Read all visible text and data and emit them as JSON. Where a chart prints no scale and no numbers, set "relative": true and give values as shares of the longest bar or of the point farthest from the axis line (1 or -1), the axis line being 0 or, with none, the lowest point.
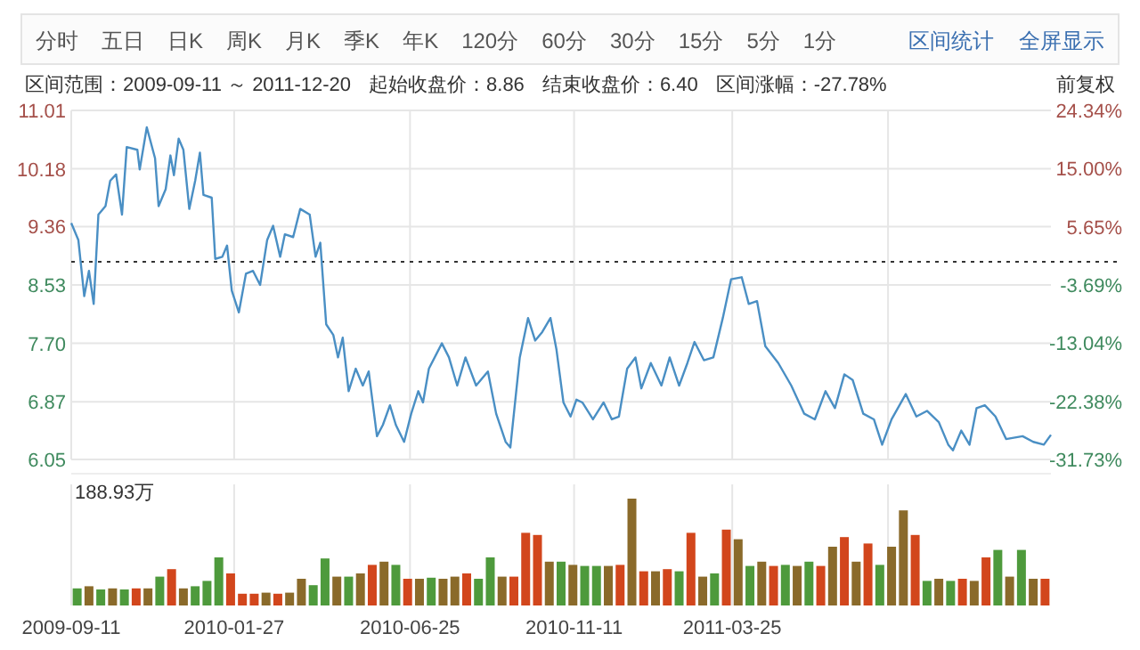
{
  "chart_data": [
    {
      "type": "line",
      "annotations": [
        "分时",
        "五日",
        "日K",
        "周K",
        "月K",
        "季K",
        "年K",
        "120分",
        "60分",
        "30分",
        "15分",
        "5分",
        "1分",
        "区间统计",
        "全屏显示",
        "区间范围：2009-09-11 ～ 2011-12-20",
        "起始收盘价：8.86",
        "结束收盘价：6.40",
        "区间涨幅：-27.78%",
        "前复权"
      ],
      "xlim": [
        "2009-09-11",
        "2011-12-20"
      ],
      "xticks": [
        "2009-09-11",
        "2010-01-27",
        "2010-06-25",
        "2010-11-11",
        "2011-03-25",
        {
          "value": "2011-08-04",
          "label": null
        }
      ],
      "ylim": [
        6.05,
        11.01
      ],
      "yticks": [
        6.05,
        6.87,
        {
          "value": 7.7,
          "label": "7.70"
        },
        8.53,
        9.36,
        10.18,
        11.01
      ],
      "y2lim": [
        -31.73,
        24.34
      ],
      "y2ticks": [
        {
          "value": -31.73,
          "label": "-31.73%"
        },
        {
          "value": -22.38,
          "label": "-22.38%"
        },
        {
          "value": -13.04,
          "label": "-13.04%"
        },
        {
          "value": -3.69,
          "label": "-3.69%"
        },
        {
          "value": 5.65,
          "label": "5.65%"
        },
        {
          "value": 15.0,
          "label": "15.00%"
        },
        {
          "value": 24.34,
          "label": "24.34%"
        }
      ],
      "grid": true,
      "tick_labels": "y",
      "ref_lines": [
        {
          "axis": "y",
          "value": 8.86,
          "line_style": "dotted",
          "color": "#333333"
        }
      ],
      "series": [
        {
          "color": "#4a8fc4",
          "x": [
            "2009-09-11",
            "2009-09-17",
            "2009-09-22",
            "2009-09-26",
            "2009-09-30",
            "2009-10-04",
            "2009-10-10",
            "2009-10-14",
            "2009-10-19",
            "2009-10-24",
            "2009-10-28",
            "2009-11-06",
            "2009-11-08",
            "2009-11-14",
            "2009-11-21",
            "2009-11-24",
            "2009-11-30",
            "2009-12-04",
            "2009-12-07",
            "2009-12-11",
            "2009-12-15",
            "2009-12-20",
            "2009-12-25",
            "2009-12-29",
            "2010-01-01",
            "2010-01-08",
            "2010-01-11",
            "2010-01-17",
            "2010-01-21",
            "2010-01-25",
            "2010-01-31",
            "2010-02-06",
            "2010-02-12",
            "2010-02-18",
            "2010-02-24",
            "2010-03-01",
            "2010-03-07",
            "2010-03-11",
            "2010-03-18",
            "2010-03-24",
            "2010-04-01",
            "2010-04-06",
            "2010-04-10",
            "2010-04-15",
            "2010-04-21",
            "2010-04-25",
            "2010-04-29",
            "2010-05-04",
            "2010-05-10",
            "2010-05-16",
            "2010-05-21",
            "2010-05-28",
            "2010-06-02",
            "2010-06-08",
            "2010-06-13",
            "2010-06-20",
            "2010-06-26",
            "2010-07-02",
            "2010-07-06",
            "2010-07-11",
            "2010-07-22",
            "2010-07-28",
            "2010-08-04",
            "2010-08-11",
            "2010-08-20",
            "2010-08-30",
            "2010-09-06",
            "2010-09-14",
            "2010-09-18",
            "2010-09-26",
            "2010-10-03",
            "2010-10-09",
            "2010-10-15",
            "2010-10-22",
            "2010-10-27",
            "2010-11-02",
            "2010-11-08",
            "2010-11-13",
            "2010-11-18",
            "2010-11-27",
            "2010-12-06",
            "2010-12-13",
            "2010-12-19",
            "2010-12-26",
            "2011-01-02",
            "2011-01-07",
            "2011-01-15",
            "2011-01-24",
            "2011-01-31",
            "2011-02-08",
            "2011-02-15",
            "2011-02-21",
            "2011-03-01",
            "2011-03-09",
            "2011-03-17",
            "2011-03-24",
            "2011-04-02",
            "2011-04-08",
            "2011-04-15",
            "2011-04-22",
            "2011-05-03",
            "2011-05-14",
            "2011-05-25",
            "2011-06-03",
            "2011-06-12",
            "2011-06-20",
            "2011-06-28",
            "2011-07-05",
            "2011-07-14",
            "2011-07-23",
            "2011-07-30",
            "2011-08-07",
            "2011-08-19",
            "2011-08-28",
            "2011-09-06",
            "2011-09-16",
            "2011-09-24",
            "2011-09-28",
            "2011-10-05",
            "2011-10-12",
            "2011-10-18",
            "2011-10-25",
            "2011-11-03",
            "2011-11-12",
            "2011-11-26",
            "2011-12-05",
            "2011-12-14",
            "2011-12-20"
          ],
          "values": [
            9.41,
            9.17,
            8.37,
            8.73,
            8.26,
            9.53,
            9.65,
            10.01,
            10.1,
            9.53,
            10.49,
            10.45,
            10.17,
            10.77,
            10.33,
            9.65,
            9.89,
            10.37,
            10.09,
            10.61,
            10.45,
            9.61,
            10.01,
            10.41,
            9.81,
            9.77,
            8.9,
            8.93,
            9.09,
            8.45,
            8.14,
            8.69,
            8.73,
            8.53,
            9.17,
            9.37,
            8.93,
            9.25,
            9.21,
            9.61,
            9.53,
            8.93,
            9.13,
            7.97,
            7.82,
            7.5,
            7.78,
            7.02,
            7.34,
            7.1,
            7.3,
            6.38,
            6.54,
            6.82,
            6.54,
            6.3,
            6.7,
            7.02,
            6.86,
            7.34,
            7.7,
            7.5,
            7.1,
            7.5,
            7.1,
            7.3,
            6.7,
            6.3,
            6.22,
            7.5,
            8.06,
            7.74,
            7.86,
            8.06,
            7.62,
            6.86,
            6.66,
            6.9,
            6.86,
            6.62,
            6.86,
            6.62,
            6.66,
            7.34,
            7.5,
            7.06,
            7.42,
            7.1,
            7.5,
            7.1,
            7.42,
            7.72,
            7.46,
            7.5,
            8.06,
            8.61,
            8.64,
            8.26,
            8.3,
            7.66,
            7.42,
            7.1,
            6.7,
            6.62,
            7.02,
            6.78,
            7.26,
            7.18,
            6.7,
            6.62,
            6.26,
            6.62,
            6.98,
            6.66,
            6.74,
            6.58,
            6.26,
            6.18,
            6.46,
            6.26,
            6.78,
            6.82,
            6.66,
            6.34,
            6.38,
            6.3,
            6.26,
            6.4
          ]
        }
      ]
    },
    {
      "type": "bar",
      "relative": true,
      "annotations": [
        "188.93万"
      ],
      "grid": "x",
      "tick_labels": "x",
      "xlim": [
        "2009-09-11",
        "2011-12-20"
      ],
      "xticks": [
        "2009-09-11",
        "2010-01-27",
        "2010-06-25",
        "2010-11-11",
        "2011-03-25",
        {
          "value": "2011-08-04",
          "label": null
        }
      ],
      "x": [
        "2009-09-16",
        "2009-09-26",
        "2009-10-06",
        "2009-10-16",
        "2009-10-26",
        "2009-11-05",
        "2009-11-15",
        "2009-11-25",
        "2009-12-05",
        "2009-12-15",
        "2009-12-25",
        "2010-01-04",
        "2010-01-14",
        "2010-01-24",
        "2010-02-03",
        "2010-02-13",
        "2010-02-23",
        "2010-03-05",
        "2010-03-15",
        "2010-03-25",
        "2010-04-04",
        "2010-04-14",
        "2010-04-24",
        "2010-05-04",
        "2010-05-14",
        "2010-05-24",
        "2010-06-03",
        "2010-06-13",
        "2010-06-23",
        "2010-07-03",
        "2010-07-13",
        "2010-07-23",
        "2010-08-02",
        "2010-08-12",
        "2010-08-22",
        "2010-09-01",
        "2010-09-11",
        "2010-09-21",
        "2010-10-01",
        "2010-10-11",
        "2010-10-21",
        "2010-10-31",
        "2010-11-10",
        "2010-11-20",
        "2010-11-30",
        "2010-12-10",
        "2010-12-20",
        "2010-12-30",
        "2011-01-09",
        "2011-01-19",
        "2011-01-29",
        "2011-02-08",
        "2011-02-18",
        "2011-02-28",
        "2011-03-10",
        "2011-03-20",
        "2011-03-30",
        "2011-04-09",
        "2011-04-19",
        "2011-04-29",
        "2011-05-09",
        "2011-05-19",
        "2011-05-29",
        "2011-06-08",
        "2011-06-18",
        "2011-06-28",
        "2011-07-08",
        "2011-07-18",
        "2011-07-28",
        "2011-08-07",
        "2011-08-17",
        "2011-08-27",
        "2011-09-06",
        "2011-09-16",
        "2011-09-26",
        "2011-10-06",
        "2011-10-16",
        "2011-10-26",
        "2011-11-05",
        "2011-11-15",
        "2011-11-25",
        "2011-12-05",
        "2011-12-15"
      ],
      "values": [
        0.16,
        0.18,
        0.15,
        0.16,
        0.15,
        0.16,
        0.16,
        0.27,
        0.34,
        0.16,
        0.18,
        0.23,
        0.45,
        0.3,
        0.11,
        0.11,
        0.12,
        0.11,
        0.12,
        0.25,
        0.19,
        0.44,
        0.27,
        0.27,
        0.3,
        0.38,
        0.41,
        0.38,
        0.25,
        0.25,
        0.26,
        0.25,
        0.27,
        0.3,
        0.25,
        0.45,
        0.27,
        0.27,
        0.68,
        0.66,
        0.41,
        0.41,
        0.38,
        0.37,
        0.37,
        0.37,
        0.38,
        1,
        0.32,
        0.32,
        0.34,
        0.32,
        0.68,
        0.27,
        0.3,
        0.71,
        0.62,
        0.37,
        0.41,
        0.37,
        0.38,
        0.37,
        0.41,
        0.37,
        0.55,
        0.64,
        0.41,
        0.58,
        0.38,
        0.55,
        0.89,
        0.66,
        0.23,
        0.25,
        0.23,
        0.25,
        0.23,
        0.45,
        0.52,
        0.27,
        0.52,
        0.25,
        0.25
      ],
      "colors": [
        "#4e9a3c",
        "#8a6a2a",
        "#4e9a3c",
        "#8a6a2a",
        "#4e9a3c",
        "#d2461c",
        "#8a6a2a",
        "#4e9a3c",
        "#d2461c",
        "#8a6a2a",
        "#4e9a3c",
        "#4e9a3c",
        "#4e9a3c",
        "#d2461c",
        "#d2461c",
        "#d2461c",
        "#8a6a2a",
        "#d2461c",
        "#8a6a2a",
        "#8a6a2a",
        "#4e9a3c",
        "#4e9a3c",
        "#8a6a2a",
        "#4e9a3c",
        "#8a6a2a",
        "#d2461c",
        "#8a6a2a",
        "#4e9a3c",
        "#d2461c",
        "#8a6a2a",
        "#4e9a3c",
        "#8a6a2a",
        "#8a6a2a",
        "#d2461c",
        "#4e9a3c",
        "#4e9a3c",
        "#8a6a2a",
        "#d2461c",
        "#d2461c",
        "#d2461c",
        "#8a6a2a",
        "#4e9a3c",
        "#8a6a2a",
        "#4e9a3c",
        "#4e9a3c",
        "#8a6a2a",
        "#d2461c",
        "#8a6a2a",
        "#d2461c",
        "#8a6a2a",
        "#d2461c",
        "#4e9a3c",
        "#d2461c",
        "#8a6a2a",
        "#4e9a3c",
        "#d2461c",
        "#8a6a2a",
        "#4e9a3c",
        "#8a6a2a",
        "#d2461c",
        "#4e9a3c",
        "#8a6a2a",
        "#4e9a3c",
        "#d2461c",
        "#8a6a2a",
        "#d2461c",
        "#8a6a2a",
        "#d2461c",
        "#4e9a3c",
        "#8a6a2a",
        "#8a6a2a",
        "#d2461c",
        "#4e9a3c",
        "#8a6a2a",
        "#4e9a3c",
        "#d2461c",
        "#8a6a2a",
        "#d2461c",
        "#4e9a3c",
        "#8a6a2a",
        "#4e9a3c",
        "#8a6a2a",
        "#d2461c"
      ]
    }
  ]
}
